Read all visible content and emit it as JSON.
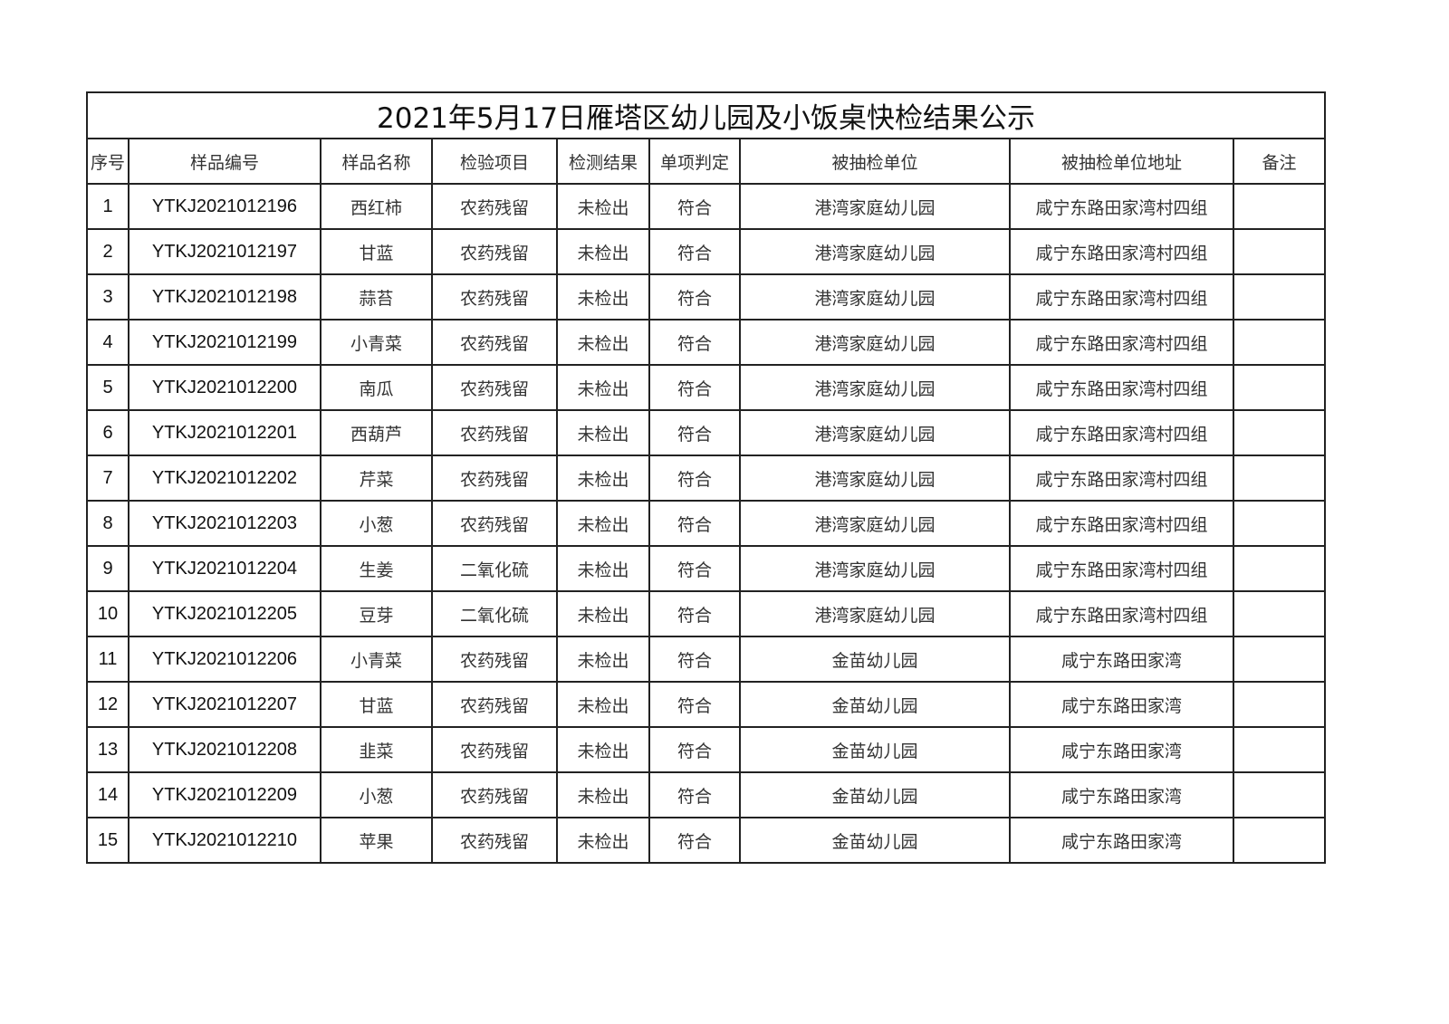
{
  "title": "2021年5月17日雁塔区幼儿园及小饭桌快检结果公示",
  "headers": [
    "序号",
    "样品编号",
    "样品名称",
    "检验项目",
    "检测结果",
    "单项判定",
    "被抽检单位",
    "被抽检单位地址",
    "备注"
  ],
  "rows": [
    [
      "1",
      "YTKJ2021012196",
      "西红柿",
      "农药残留",
      "未检出",
      "符合",
      "港湾家庭幼儿园",
      "咸宁东路田家湾村四组",
      ""
    ],
    [
      "2",
      "YTKJ2021012197",
      "甘蓝",
      "农药残留",
      "未检出",
      "符合",
      "港湾家庭幼儿园",
      "咸宁东路田家湾村四组",
      ""
    ],
    [
      "3",
      "YTKJ2021012198",
      "蒜苔",
      "农药残留",
      "未检出",
      "符合",
      "港湾家庭幼儿园",
      "咸宁东路田家湾村四组",
      ""
    ],
    [
      "4",
      "YTKJ2021012199",
      "小青菜",
      "农药残留",
      "未检出",
      "符合",
      "港湾家庭幼儿园",
      "咸宁东路田家湾村四组",
      ""
    ],
    [
      "5",
      "YTKJ2021012200",
      "南瓜",
      "农药残留",
      "未检出",
      "符合",
      "港湾家庭幼儿园",
      "咸宁东路田家湾村四组",
      ""
    ],
    [
      "6",
      "YTKJ2021012201",
      "西葫芦",
      "农药残留",
      "未检出",
      "符合",
      "港湾家庭幼儿园",
      "咸宁东路田家湾村四组",
      ""
    ],
    [
      "7",
      "YTKJ2021012202",
      "芹菜",
      "农药残留",
      "未检出",
      "符合",
      "港湾家庭幼儿园",
      "咸宁东路田家湾村四组",
      ""
    ],
    [
      "8",
      "YTKJ2021012203",
      "小葱",
      "农药残留",
      "未检出",
      "符合",
      "港湾家庭幼儿园",
      "咸宁东路田家湾村四组",
      ""
    ],
    [
      "9",
      "YTKJ2021012204",
      "生姜",
      "二氧化硫",
      "未检出",
      "符合",
      "港湾家庭幼儿园",
      "咸宁东路田家湾村四组",
      ""
    ],
    [
      "10",
      "YTKJ2021012205",
      "豆芽",
      "二氧化硫",
      "未检出",
      "符合",
      "港湾家庭幼儿园",
      "咸宁东路田家湾村四组",
      ""
    ],
    [
      "11",
      "YTKJ2021012206",
      "小青菜",
      "农药残留",
      "未检出",
      "符合",
      "金苗幼儿园",
      "咸宁东路田家湾",
      ""
    ],
    [
      "12",
      "YTKJ2021012207",
      "甘蓝",
      "农药残留",
      "未检出",
      "符合",
      "金苗幼儿园",
      "咸宁东路田家湾",
      ""
    ],
    [
      "13",
      "YTKJ2021012208",
      "韭菜",
      "农药残留",
      "未检出",
      "符合",
      "金苗幼儿园",
      "咸宁东路田家湾",
      ""
    ],
    [
      "14",
      "YTKJ2021012209",
      "小葱",
      "农药残留",
      "未检出",
      "符合",
      "金苗幼儿园",
      "咸宁东路田家湾",
      ""
    ],
    [
      "15",
      "YTKJ2021012210",
      "苹果",
      "农药残留",
      "未检出",
      "符合",
      "金苗幼儿园",
      "咸宁东路田家湾",
      ""
    ]
  ]
}
